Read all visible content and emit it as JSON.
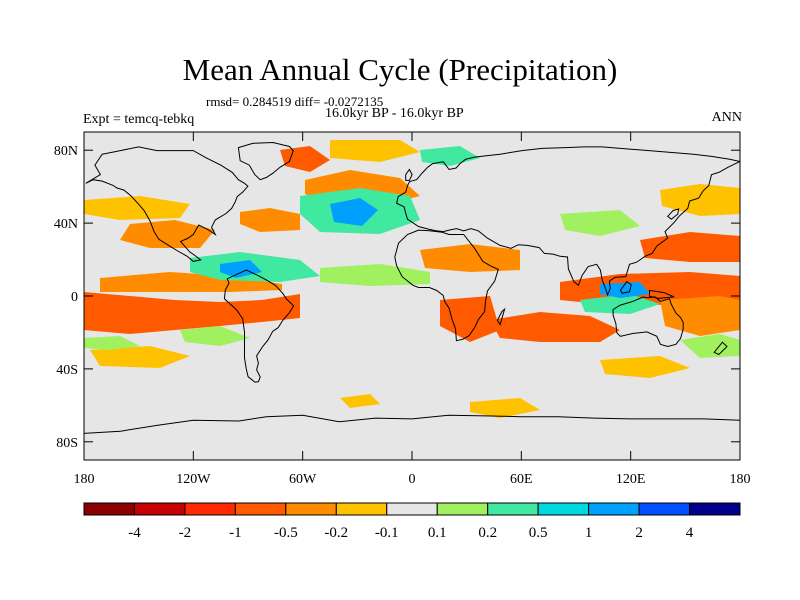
{
  "title": "Mean Annual Cycle (Precipitation)",
  "stats": "rmsd= 0.284519 diff= -0.0272135",
  "left_label": "Expt = temcq-tebkq",
  "center_label": "16.0kyr BP - 16.0kyr BP",
  "right_label": "ANN",
  "lat_ticks": [
    {
      "label": "80N",
      "lat": 80
    },
    {
      "label": "40N",
      "lat": 40
    },
    {
      "label": "0",
      "lat": 0
    },
    {
      "label": "40S",
      "lat": -40
    },
    {
      "label": "80S",
      "lat": -80
    }
  ],
  "lon_ticks": [
    {
      "label": "180",
      "lon": -180
    },
    {
      "label": "120W",
      "lon": -120
    },
    {
      "label": "60W",
      "lon": -60
    },
    {
      "label": "0",
      "lon": 0
    },
    {
      "label": "60E",
      "lon": 60
    },
    {
      "label": "120E",
      "lon": 120
    },
    {
      "label": "180",
      "lon": 180
    }
  ],
  "colorbar": {
    "colors": [
      "#8b0000",
      "#c40000",
      "#ff2a00",
      "#ff5a00",
      "#ff8c00",
      "#ffc200",
      "#e6e6e6",
      "#a0f060",
      "#40e8a0",
      "#00d8e0",
      "#00a0ff",
      "#0050ff",
      "#00008b"
    ],
    "labels": [
      "-4",
      "-2",
      "-1",
      "-0.5",
      "-0.2",
      "-0.1",
      "0.1",
      "0.2",
      "0.5",
      "1",
      "2",
      "4"
    ]
  },
  "colors": {
    "background": "#e6e6e6",
    "coast": "#000000"
  }
}
